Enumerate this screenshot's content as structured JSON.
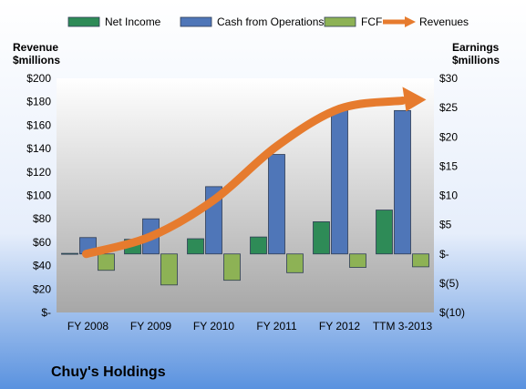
{
  "chart_data": {
    "type": "bar",
    "title": "Chuy's Holdings",
    "categories": [
      "FY 2008",
      "FY 2009",
      "FY 2010",
      "FY 2011",
      "FY 2012",
      "TTM 3-2013"
    ],
    "left_axis": {
      "label_line1": "Revenue",
      "label_line2": "$millions",
      "ylim": [
        0,
        200
      ],
      "ticks": [
        0,
        20,
        40,
        60,
        80,
        100,
        120,
        140,
        160,
        180,
        200
      ],
      "tick_labels": [
        "$-",
        "$20",
        "$40",
        "$60",
        "$80",
        "$100",
        "$120",
        "$140",
        "$160",
        "$180",
        "$200"
      ]
    },
    "right_axis": {
      "label_line1": "Earnings",
      "label_line2": "$millions",
      "ylim": [
        -10,
        30
      ],
      "ticks": [
        -10,
        -5,
        0,
        5,
        10,
        15,
        20,
        25,
        30
      ],
      "tick_labels": [
        "$(10)",
        "$(5)",
        "$-",
        "$5",
        "$10",
        "$15",
        "$20",
        "$25",
        "$30"
      ]
    },
    "series": [
      {
        "name": "Net Income",
        "axis": "right",
        "kind": "bar",
        "color": "#2e8b57",
        "values": [
          0.1,
          2.5,
          2.6,
          2.9,
          5.5,
          7.5
        ]
      },
      {
        "name": "Cash from Operations",
        "axis": "right",
        "kind": "bar",
        "color": "#4f76b8",
        "values": [
          2.8,
          6.0,
          11.5,
          17.0,
          24.5,
          24.5
        ]
      },
      {
        "name": "FCF",
        "axis": "right",
        "kind": "bar",
        "color": "#8db255",
        "values": [
          -2.8,
          -5.3,
          -4.5,
          -3.2,
          -2.3,
          -2.2
        ]
      },
      {
        "name": "Revenues",
        "axis": "left",
        "kind": "arrow",
        "color": "#e67b2e",
        "values": [
          50,
          65,
          96,
          142,
          174,
          181
        ]
      }
    ],
    "legend_position": "top",
    "grid": false
  }
}
